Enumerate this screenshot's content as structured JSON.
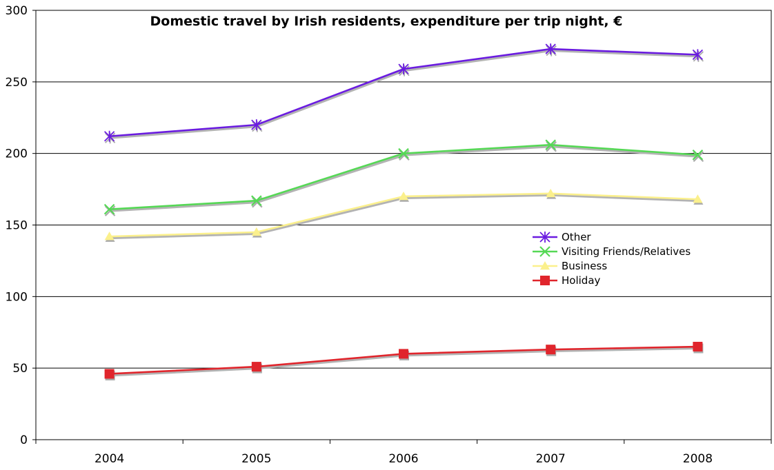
{
  "chart_data": {
    "type": "line",
    "title": "Domestic travel by Irish residents, expenditure per trip night, €",
    "xlabel": "",
    "ylabel": "",
    "categories": [
      "2004",
      "2005",
      "2006",
      "2007",
      "2008"
    ],
    "ylim": [
      0,
      300
    ],
    "yticks": [
      0,
      50,
      100,
      150,
      200,
      250,
      300
    ],
    "grid": true,
    "legend_position": "center-right",
    "series": [
      {
        "name": "Other",
        "values": [
          212,
          220,
          259,
          273,
          269
        ],
        "color": "#6a1be0",
        "marker": "asterisk"
      },
      {
        "name": "Visiting Friends/Relatives",
        "values": [
          161,
          167,
          200,
          206,
          199
        ],
        "color": "#55d855",
        "marker": "x"
      },
      {
        "name": "Business",
        "values": [
          142,
          145,
          170,
          172,
          168
        ],
        "color": "#fbf08c",
        "marker": "triangle"
      },
      {
        "name": "Holiday",
        "values": [
          46,
          51,
          60,
          63,
          65
        ],
        "color": "#e0252c",
        "marker": "square"
      }
    ]
  }
}
